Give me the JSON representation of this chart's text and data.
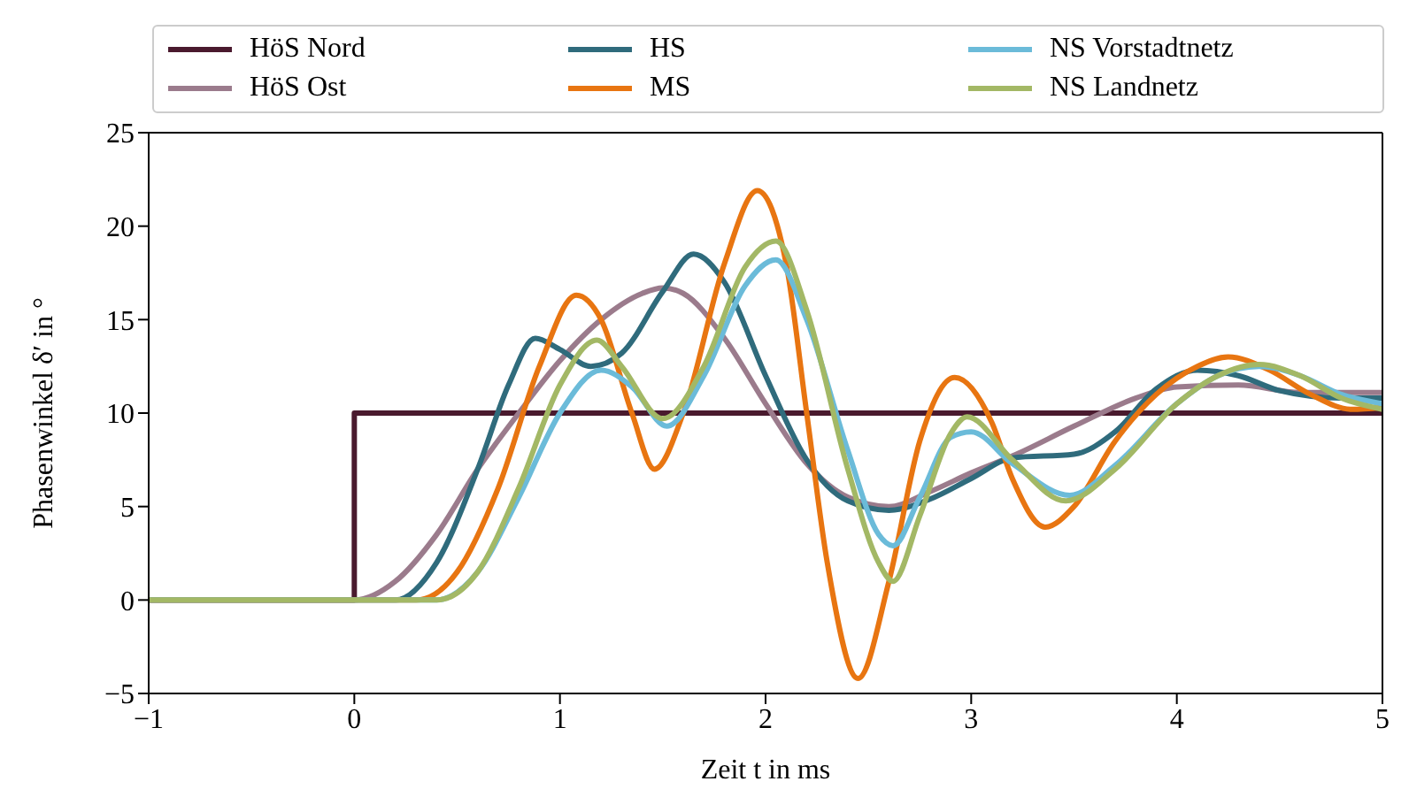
{
  "chart_data": {
    "type": "line",
    "xlabel": "Zeit t in ms",
    "ylabel": "Phasenwinkel δ′ in °",
    "xlim": [
      -1,
      5
    ],
    "xticks": [
      -1,
      0,
      1,
      2,
      3,
      4,
      5
    ],
    "ylim": [
      -5,
      25
    ],
    "yticks": [
      -5,
      0,
      5,
      10,
      15,
      20,
      25
    ],
    "grid": false,
    "legend": "top",
    "marker": "none",
    "line_style": "solid",
    "series": [
      {
        "name": "HöS Nord",
        "color": "#4a1a2e",
        "x": [
          -1,
          0,
          0,
          5
        ],
        "values": [
          0,
          0,
          10,
          10
        ]
      },
      {
        "name": "HöS Ost",
        "color": "#9b7b8c",
        "x": [
          -1,
          0,
          0.2,
          0.4,
          0.6,
          0.8,
          1.0,
          1.2,
          1.4,
          1.5,
          1.6,
          1.8,
          2.0,
          2.2,
          2.4,
          2.6,
          2.8,
          3.0,
          3.2,
          3.5,
          3.8,
          4.0,
          4.3,
          4.6,
          5
        ],
        "values": [
          0,
          0,
          1,
          3.5,
          7,
          10,
          12.8,
          15,
          16.4,
          16.7,
          16.4,
          14,
          10.5,
          7.3,
          5.5,
          5,
          5.8,
          6.8,
          7.7,
          9.3,
          10.8,
          11.4,
          11.5,
          11.1,
          11.1
        ]
      },
      {
        "name": "HS",
        "color": "#2f6b7c",
        "x": [
          -1,
          0.2,
          0.4,
          0.6,
          0.75,
          0.88,
          1.0,
          1.15,
          1.3,
          1.5,
          1.65,
          1.8,
          2.0,
          2.2,
          2.4,
          2.6,
          2.8,
          3.0,
          3.2,
          3.5,
          3.7,
          3.9,
          4.1,
          4.3,
          4.5,
          4.8,
          5
        ],
        "values": [
          0,
          0,
          2,
          7,
          11.5,
          14,
          13.4,
          12.5,
          13.2,
          16.5,
          18.5,
          17,
          12,
          7.5,
          5.3,
          4.8,
          5.4,
          6.5,
          7.6,
          7.8,
          9,
          11.3,
          12.3,
          12,
          11.2,
          10.8,
          10.8
        ]
      },
      {
        "name": "MS",
        "color": "#e87511",
        "x": [
          -1,
          0.3,
          0.5,
          0.7,
          0.9,
          1.08,
          1.2,
          1.35,
          1.46,
          1.6,
          1.8,
          1.96,
          2.1,
          2.2,
          2.3,
          2.45,
          2.6,
          2.75,
          2.92,
          3.1,
          3.2,
          3.36,
          3.5,
          3.7,
          3.9,
          4.1,
          4.25,
          4.45,
          4.65,
          4.85,
          5
        ],
        "values": [
          0,
          0,
          1.5,
          6,
          12.5,
          16.3,
          15,
          10,
          7,
          10,
          18,
          21.9,
          18,
          10,
          2,
          -4.2,
          1,
          8.5,
          11.9,
          9.5,
          6.5,
          3.9,
          5,
          8.5,
          11,
          12.5,
          13,
          12.3,
          11,
          10.2,
          10.3
        ]
      },
      {
        "name": "NS Vorstadtnetz",
        "color": "#6bbbd9",
        "x": [
          -1,
          0.4,
          0.6,
          0.8,
          1.0,
          1.2,
          1.35,
          1.52,
          1.7,
          1.9,
          2.05,
          2.2,
          2.4,
          2.55,
          2.62,
          2.75,
          2.9,
          3.0,
          3.2,
          3.48,
          3.7,
          4.0,
          4.2,
          4.4,
          4.6,
          4.8,
          5
        ],
        "values": [
          0,
          0,
          1.5,
          5.5,
          10,
          12.3,
          11.4,
          9.3,
          12,
          16.8,
          18.2,
          15,
          8,
          3.5,
          2.9,
          5.5,
          8.7,
          9,
          7.3,
          5.6,
          7.2,
          10.5,
          12,
          12.5,
          12,
          11,
          10.5
        ]
      },
      {
        "name": "NS Landnetz",
        "color": "#a3b865",
        "x": [
          -1,
          0.4,
          0.6,
          0.8,
          1.0,
          1.18,
          1.3,
          1.5,
          1.7,
          1.9,
          2.05,
          2.2,
          2.4,
          2.55,
          2.62,
          2.75,
          2.9,
          2.98,
          3.2,
          3.46,
          3.7,
          4.0,
          4.2,
          4.4,
          4.6,
          4.8,
          5
        ],
        "values": [
          0,
          0,
          1.5,
          6,
          11.5,
          13.9,
          12.5,
          9.7,
          12.5,
          17.8,
          19.2,
          15.5,
          7,
          2,
          1,
          4.5,
          8.9,
          9.8,
          7.5,
          5.3,
          7,
          10.5,
          12,
          12.6,
          12,
          10.8,
          10.2
        ]
      }
    ]
  }
}
